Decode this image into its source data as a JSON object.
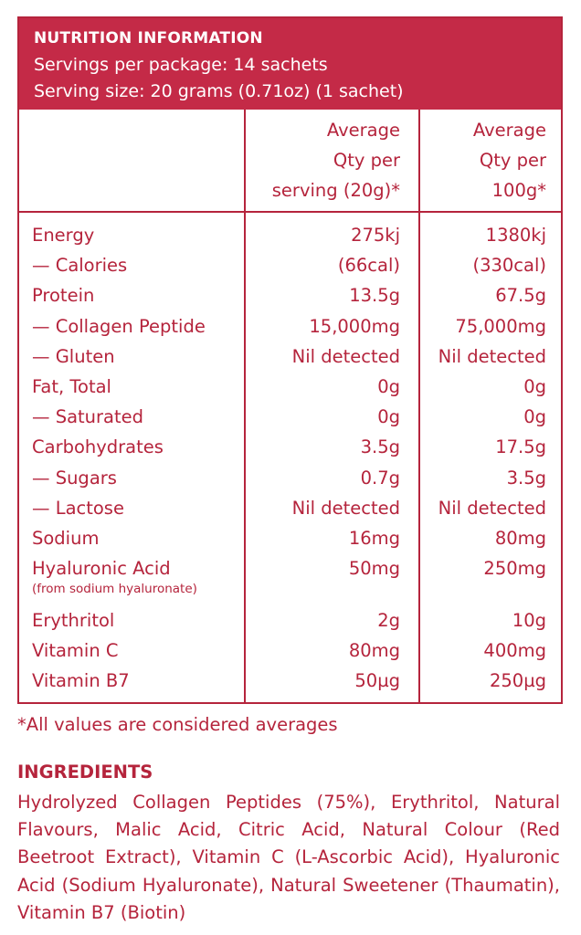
{
  "nutrition": {
    "title": "NUTRITION INFORMATION",
    "servings_per_package": "Servings per package: 14 sachets",
    "serving_size": "Serving size: 20 grams (0.71oz) (1 sachet)",
    "columns": {
      "per_serving": [
        "Average",
        "Qty per",
        "serving (20g)*"
      ],
      "per_100g": [
        "Average",
        "Qty per",
        "100g*"
      ]
    },
    "rows": [
      {
        "name": "Energy",
        "sub": "",
        "serving": "275kj",
        "per100": "1380kj"
      },
      {
        "name": "— Calories",
        "sub": "",
        "serving": "(66cal)",
        "per100": "(330cal)"
      },
      {
        "name": "Protein",
        "sub": "",
        "serving": "13.5g",
        "per100": "67.5g"
      },
      {
        "name": "— Collagen Peptide",
        "sub": "",
        "serving": "15,000mg",
        "per100": "75,000mg"
      },
      {
        "name": "— Gluten",
        "sub": "",
        "serving": "Nil detected",
        "per100": "Nil detected"
      },
      {
        "name": "Fat, Total",
        "sub": "",
        "serving": "0g",
        "per100": "0g"
      },
      {
        "name": "— Saturated",
        "sub": "",
        "serving": "0g",
        "per100": "0g"
      },
      {
        "name": "Carbohydrates",
        "sub": "",
        "serving": "3.5g",
        "per100": "17.5g"
      },
      {
        "name": "— Sugars",
        "sub": "",
        "serving": "0.7g",
        "per100": "3.5g"
      },
      {
        "name": "— Lactose",
        "sub": "",
        "serving": "Nil detected",
        "per100": "Nil detected"
      },
      {
        "name": "Sodium",
        "sub": "",
        "serving": "16mg",
        "per100": "80mg"
      },
      {
        "name": "Hyaluronic Acid",
        "sub": "(from sodium hyaluronate)",
        "serving": "50mg",
        "per100": "250mg"
      },
      {
        "name": "Erythritol",
        "sub": "",
        "serving": "2g",
        "per100": "10g"
      },
      {
        "name": "Vitamin C",
        "sub": "",
        "serving": "80mg",
        "per100": "400mg"
      },
      {
        "name": "Vitamin B7",
        "sub": "",
        "serving": "50µg",
        "per100": "250µg"
      }
    ],
    "footnote": "*All values are considered averages"
  },
  "ingredients": {
    "title": "INGREDIENTS",
    "text": "Hydrolyzed Collagen Peptides (75%), Erythritol, Natural Flavours, Malic Acid, Citric Acid, Natural Colour (Red Beetroot Extract), Vitamin C (L-Ascorbic Acid), Hyaluronic Acid (Sodium Hyaluronate), Natural Sweetener (Thaumatin), Vitamin B7 (Biotin)"
  },
  "colors": {
    "accent": "#c42a47",
    "text": "#b5243c"
  }
}
